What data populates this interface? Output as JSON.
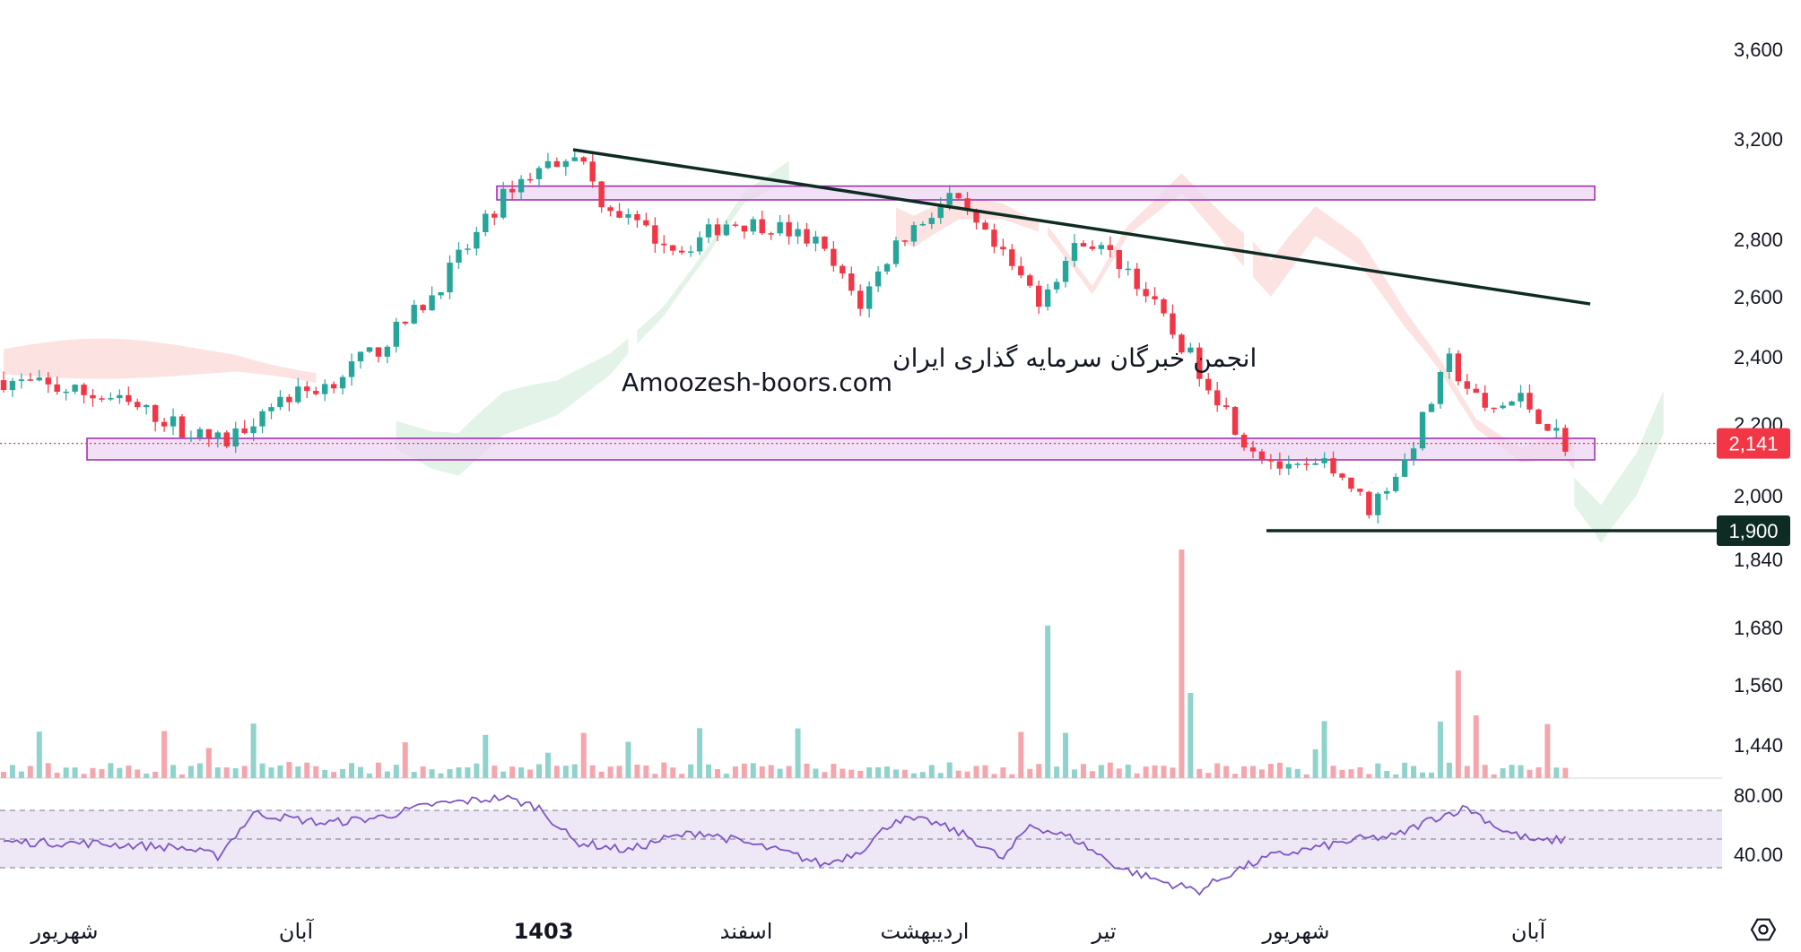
{
  "colors": {
    "bull": "#26a69a",
    "bear": "#f23645",
    "cloud_bull": "#e3f3e7",
    "cloud_bear": "#fde2e2",
    "zone_fill": "#ecd6f3",
    "zone_stroke": "#9c27b0",
    "trend_line": "#0e2c24",
    "rsi_line": "#7e57c2",
    "rsi_band": "#ede7f6",
    "vol_bull": "#8fd3cc",
    "vol_bear": "#f5a6ad",
    "last_price": "#f23645",
    "support_badge": "#0e2c24"
  },
  "watermark": {
    "line1": "انجمن خبرگان سرمایه گذاری ایران",
    "line2": "Amoozesh-boors.com"
  },
  "price_axis": {
    "ticks": [
      "3,600",
      "3,200",
      "2,800",
      "2,600",
      "2,400",
      "2,200",
      "2,000",
      "1,840",
      "1,680",
      "1,560",
      "1,440"
    ],
    "last_price_label": "2,141",
    "support_label": "1,900"
  },
  "rsi_axis": {
    "ticks": [
      "80.00",
      "40.00"
    ]
  },
  "time_axis": {
    "labels": [
      "شهریور",
      "آبان",
      "1403",
      "اسفند",
      "اردیبهشت",
      "تیر",
      "شهریور",
      "آبان"
    ]
  },
  "icons": {
    "settings": "gear-icon"
  },
  "chart_data": {
    "type": "candlestick",
    "instrument": "",
    "price_range": [
      1800,
      3650
    ],
    "last_price": 2141,
    "support_level": 1900,
    "resistance_zone": [
      2950,
      3005
    ],
    "support_zone": [
      2095,
      2155
    ],
    "downtrend_line": {
      "from_price": 3150,
      "to_price": 2570
    },
    "x_labels": [
      "شهریور",
      "آبان",
      "1403",
      "اسفند",
      "اردیبهشت",
      "تیر",
      "شهریور",
      "آبان"
    ],
    "price_path": [
      [
        0,
        2325
      ],
      [
        6,
        2300
      ],
      [
        12,
        2270
      ],
      [
        17,
        2220
      ],
      [
        22,
        2160
      ],
      [
        25,
        2145
      ],
      [
        30,
        2260
      ],
      [
        36,
        2310
      ],
      [
        42,
        2420
      ],
      [
        48,
        2600
      ],
      [
        53,
        2810
      ],
      [
        57,
        3010
      ],
      [
        61,
        3090
      ],
      [
        64,
        3150
      ],
      [
        67,
        2950
      ],
      [
        72,
        2820
      ],
      [
        76,
        2760
      ],
      [
        81,
        2860
      ],
      [
        86,
        2850
      ],
      [
        91,
        2780
      ],
      [
        96,
        2570
      ],
      [
        100,
        2780
      ],
      [
        106,
        2960
      ],
      [
        111,
        2760
      ],
      [
        116,
        2590
      ],
      [
        121,
        2800
      ],
      [
        126,
        2690
      ],
      [
        131,
        2470
      ],
      [
        135,
        2320
      ],
      [
        139,
        2150
      ],
      [
        144,
        2060
      ],
      [
        149,
        2080
      ],
      [
        153,
        1960
      ],
      [
        157,
        2090
      ],
      [
        162,
        2380
      ],
      [
        166,
        2230
      ],
      [
        170,
        2270
      ],
      [
        175,
        2141
      ]
    ],
    "volume_profile": "relative volume bars under price; spikes near تیر and before شهریور",
    "rsi": {
      "levels": [
        70,
        50,
        30
      ],
      "ticks": [
        80,
        40
      ],
      "path": [
        [
          0,
          48
        ],
        [
          10,
          47
        ],
        [
          20,
          44
        ],
        [
          24,
          38
        ],
        [
          28,
          68
        ],
        [
          36,
          61
        ],
        [
          42,
          65
        ],
        [
          48,
          74
        ],
        [
          56,
          79
        ],
        [
          60,
          72
        ],
        [
          64,
          48
        ],
        [
          70,
          42
        ],
        [
          74,
          50
        ],
        [
          78,
          55
        ],
        [
          84,
          46
        ],
        [
          88,
          40
        ],
        [
          92,
          32
        ],
        [
          96,
          42
        ],
        [
          100,
          64
        ],
        [
          104,
          62
        ],
        [
          108,
          52
        ],
        [
          112,
          36
        ],
        [
          115,
          60
        ],
        [
          120,
          50
        ],
        [
          125,
          30
        ],
        [
          130,
          20
        ],
        [
          134,
          14
        ],
        [
          138,
          28
        ],
        [
          142,
          38
        ],
        [
          148,
          45
        ],
        [
          152,
          50
        ],
        [
          156,
          52
        ],
        [
          160,
          64
        ],
        [
          164,
          72
        ],
        [
          168,
          56
        ],
        [
          172,
          48
        ],
        [
          175,
          50
        ]
      ]
    }
  }
}
